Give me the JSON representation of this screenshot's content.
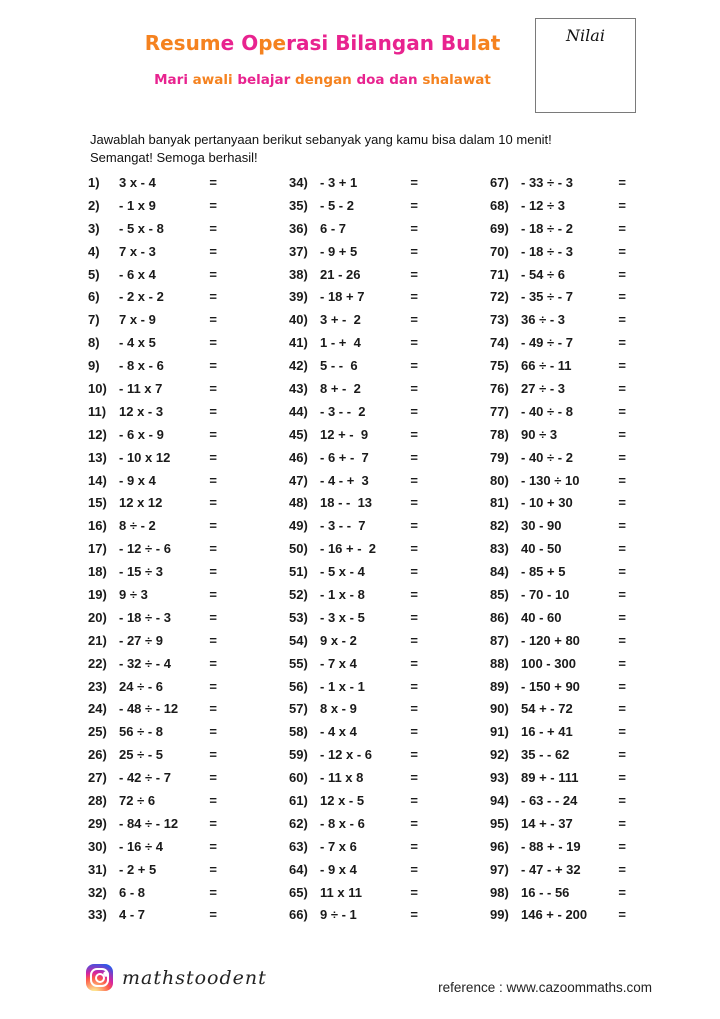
{
  "colors": {
    "orange": "#F5821F",
    "pink": "#E8238F"
  },
  "header": {
    "title_segments": [
      {
        "t": "Resum",
        "c": "orange"
      },
      {
        "t": "e ",
        "c": "pink"
      },
      {
        "t": "O",
        "c": "pink"
      },
      {
        "t": "pe",
        "c": "orange"
      },
      {
        "t": "rasi ",
        "c": "pink"
      },
      {
        "t": "Bilangan Bu",
        "c": "pink"
      },
      {
        "t": "lat",
        "c": "orange"
      }
    ],
    "subtitle_segments": [
      {
        "t": "Mari ",
        "c": "pink"
      },
      {
        "t": "awali ",
        "c": "orange"
      },
      {
        "t": "belajar ",
        "c": "pink"
      },
      {
        "t": "dengan ",
        "c": "orange"
      },
      {
        "t": "doa dan ",
        "c": "pink"
      },
      {
        "t": "shalawat",
        "c": "orange"
      }
    ],
    "score_box_label": "Nilai"
  },
  "instructions": {
    "line1": "Jawablah banyak pertanyaan berikut sebanyak yang kamu bisa dalam 10 menit!",
    "line2": "Semangat! Semoga berhasil!"
  },
  "equals_sign": "=",
  "problems": {
    "col1": [
      {
        "n": "1)",
        "e": "3 x - 4"
      },
      {
        "n": "2)",
        "e": "- 1 x 9"
      },
      {
        "n": "3)",
        "e": "- 5 x - 8"
      },
      {
        "n": "4)",
        "e": "7 x - 3"
      },
      {
        "n": "5)",
        "e": "- 6 x 4"
      },
      {
        "n": "6)",
        "e": "- 2 x - 2"
      },
      {
        "n": "7)",
        "e": "7 x - 9"
      },
      {
        "n": "8)",
        "e": "- 4 x 5"
      },
      {
        "n": "9)",
        "e": "- 8 x - 6"
      },
      {
        "n": "10)",
        "e": "- 11 x 7"
      },
      {
        "n": "11)",
        "e": "12 x - 3"
      },
      {
        "n": "12)",
        "e": "- 6 x - 9"
      },
      {
        "n": "13)",
        "e": "- 10 x 12"
      },
      {
        "n": "14)",
        "e": "- 9 x 4"
      },
      {
        "n": "15)",
        "e": "12 x 12"
      },
      {
        "n": "16)",
        "e": "8 ÷ - 2"
      },
      {
        "n": "17)",
        "e": "- 12 ÷ - 6"
      },
      {
        "n": "18)",
        "e": "- 15 ÷ 3"
      },
      {
        "n": "19)",
        "e": "9 ÷ 3"
      },
      {
        "n": "20)",
        "e": "- 18 ÷ - 3"
      },
      {
        "n": "21)",
        "e": "- 27 ÷ 9"
      },
      {
        "n": "22)",
        "e": "- 32 ÷ - 4"
      },
      {
        "n": "23)",
        "e": "24 ÷ - 6"
      },
      {
        "n": "24)",
        "e": "- 48 ÷ - 12"
      },
      {
        "n": "25)",
        "e": "56 ÷ - 8"
      },
      {
        "n": "26)",
        "e": "25 ÷ - 5"
      },
      {
        "n": "27)",
        "e": "- 42 ÷ - 7"
      },
      {
        "n": "28)",
        "e": "72 ÷ 6"
      },
      {
        "n": "29)",
        "e": "- 84 ÷ - 12"
      },
      {
        "n": "30)",
        "e": "- 16 ÷ 4"
      },
      {
        "n": "31)",
        "e": "- 2 + 5"
      },
      {
        "n": "32)",
        "e": "6 - 8"
      },
      {
        "n": "33)",
        "e": "4 - 7"
      }
    ],
    "col2": [
      {
        "n": "34)",
        "e": "- 3 + 1"
      },
      {
        "n": "35)",
        "e": "- 5 - 2"
      },
      {
        "n": "36)",
        "e": "6 - 7"
      },
      {
        "n": "37)",
        "e": "- 9 + 5"
      },
      {
        "n": "38)",
        "e": "21 - 26"
      },
      {
        "n": "39)",
        "e": "- 18 + 7"
      },
      {
        "n": "40)",
        "e": "3 + -  2"
      },
      {
        "n": "41)",
        "e": "1 - +  4"
      },
      {
        "n": "42)",
        "e": "5 - -  6"
      },
      {
        "n": "43)",
        "e": "8 + -  2"
      },
      {
        "n": "44)",
        "e": "- 3 - -  2"
      },
      {
        "n": "45)",
        "e": "12 + -  9"
      },
      {
        "n": "46)",
        "e": "- 6 + -  7"
      },
      {
        "n": "47)",
        "e": "- 4 - +  3"
      },
      {
        "n": "48)",
        "e": "18 - -  13"
      },
      {
        "n": "49)",
        "e": "- 3 - -  7"
      },
      {
        "n": "50)",
        "e": "- 16 + -  2"
      },
      {
        "n": "51)",
        "e": "- 5 x - 4"
      },
      {
        "n": "52)",
        "e": "- 1 x - 8"
      },
      {
        "n": "53)",
        "e": "- 3 x - 5"
      },
      {
        "n": "54)",
        "e": "9 x - 2"
      },
      {
        "n": "55)",
        "e": "- 7 x 4"
      },
      {
        "n": "56)",
        "e": "- 1 x - 1"
      },
      {
        "n": "57)",
        "e": "8 x - 9"
      },
      {
        "n": "58)",
        "e": "- 4 x 4"
      },
      {
        "n": "59)",
        "e": "- 12 x - 6"
      },
      {
        "n": "60)",
        "e": "- 11 x 8"
      },
      {
        "n": "61)",
        "e": "12 x - 5"
      },
      {
        "n": "62)",
        "e": "- 8 x - 6"
      },
      {
        "n": "63)",
        "e": "- 7 x 6"
      },
      {
        "n": "64)",
        "e": "- 9 x 4"
      },
      {
        "n": "65)",
        "e": "11 x 11"
      },
      {
        "n": "66)",
        "e": "9 ÷ - 1"
      }
    ],
    "col3": [
      {
        "n": "67)",
        "e": "- 33 ÷ - 3"
      },
      {
        "n": "68)",
        "e": "- 12 ÷ 3"
      },
      {
        "n": "69)",
        "e": "- 18 ÷ - 2"
      },
      {
        "n": "70)",
        "e": "- 18 ÷ - 3"
      },
      {
        "n": "71)",
        "e": "- 54 ÷ 6"
      },
      {
        "n": "72)",
        "e": "- 35 ÷ - 7"
      },
      {
        "n": "73)",
        "e": "36 ÷ - 3"
      },
      {
        "n": "74)",
        "e": "- 49 ÷ - 7"
      },
      {
        "n": "75)",
        "e": "66 ÷ - 11"
      },
      {
        "n": "76)",
        "e": "27 ÷ - 3"
      },
      {
        "n": "77)",
        "e": "- 40 ÷ - 8"
      },
      {
        "n": "78)",
        "e": "90 ÷ 3"
      },
      {
        "n": "79)",
        "e": "- 40 ÷ - 2"
      },
      {
        "n": "80)",
        "e": "- 130 ÷ 10"
      },
      {
        "n": "81)",
        "e": "- 10 + 30"
      },
      {
        "n": "82)",
        "e": "30 - 90"
      },
      {
        "n": "83)",
        "e": "40 - 50"
      },
      {
        "n": "84)",
        "e": "- 85 + 5"
      },
      {
        "n": "85)",
        "e": "- 70 - 10"
      },
      {
        "n": "86)",
        "e": "40 - 60"
      },
      {
        "n": "87)",
        "e": "- 120 + 80"
      },
      {
        "n": "88)",
        "e": "100 - 300"
      },
      {
        "n": "89)",
        "e": "- 150 + 90"
      },
      {
        "n": "90)",
        "e": "54 + - 72"
      },
      {
        "n": "91)",
        "e": "16 - + 41"
      },
      {
        "n": "92)",
        "e": "35 - - 62"
      },
      {
        "n": "93)",
        "e": "89 + - 111"
      },
      {
        "n": "94)",
        "e": "- 63 - - 24"
      },
      {
        "n": "95)",
        "e": "14 + - 37"
      },
      {
        "n": "96)",
        "e": "- 88 + - 19"
      },
      {
        "n": "97)",
        "e": "- 47 - + 32"
      },
      {
        "n": "98)",
        "e": "16 - - 56"
      },
      {
        "n": "99)",
        "e": "146 + - 200"
      }
    ]
  },
  "footer": {
    "instagram_handle": "mathstoodent",
    "reference": "reference : www.cazoommaths.com"
  }
}
